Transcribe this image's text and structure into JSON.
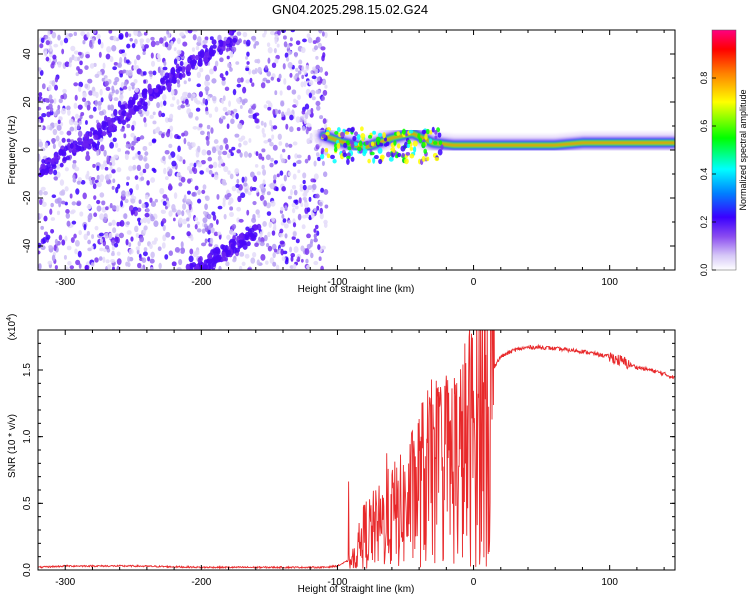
{
  "figure": {
    "title": "GN04.2025.298.15.02.G24"
  },
  "colors": {
    "axis": "#000000",
    "snr_line": "#e8292b",
    "spectro_background": "#ffffff",
    "colorbar_stops": [
      "#ffffff",
      "#b9a6f2",
      "#7a35f0",
      "#3a00ff",
      "#0080ff",
      "#00ffff",
      "#00ff00",
      "#ffff00",
      "#ff8000",
      "#ff0000",
      "#ff0080"
    ]
  },
  "chart_data": [
    {
      "type": "heatmap",
      "name": "spectrogram",
      "title": "GN04.2025.298.15.02.G24",
      "xlabel": "Height of straight line (km)",
      "ylabel": "Frequency (Hz)",
      "xlim": [
        -320,
        148
      ],
      "ylim": [
        -50,
        50
      ],
      "xticks": [
        -300,
        -200,
        -100,
        0,
        100
      ],
      "xtick_labels": [
        "-300",
        "-200",
        "-100",
        "0",
        "100"
      ],
      "yticks": [
        -40,
        -20,
        0,
        20,
        40
      ],
      "ytick_labels": [
        "-40",
        "-20",
        "0",
        "20",
        "40"
      ],
      "noise_region_xlim": [
        -320,
        -108
      ],
      "diagonal_track_1": [
        [
          -318,
          -8
        ],
        [
          -285,
          3
        ],
        [
          -250,
          18
        ],
        [
          -215,
          33
        ],
        [
          -175,
          48
        ]
      ],
      "diagonal_track_2": [
        [
          -210,
          -52
        ],
        [
          -160,
          -34
        ]
      ],
      "carrier_track": [
        [
          -110,
          6
        ],
        [
          -95,
          3
        ],
        [
          -80,
          1
        ],
        [
          -60,
          5
        ],
        [
          -45,
          7
        ],
        [
          -30,
          3
        ],
        [
          -15,
          2
        ],
        [
          0,
          2
        ],
        [
          20,
          2
        ],
        [
          40,
          2
        ],
        [
          60,
          2
        ],
        [
          80,
          3
        ],
        [
          100,
          3
        ],
        [
          120,
          3
        ],
        [
          148,
          3
        ]
      ],
      "colorbar": {
        "label": "Normalized spectral amplitude",
        "range": [
          0.0,
          1.0
        ],
        "ticks": [
          0.0,
          0.2,
          0.4,
          0.6,
          0.8
        ],
        "tick_labels": [
          "0.0",
          "0.2",
          "0.4",
          "0.6",
          "0.8"
        ]
      }
    },
    {
      "type": "line",
      "name": "snr",
      "xlabel": "Height of straight line (km)",
      "ylabel": "SNR (10 * v/v)",
      "scale_note_base": "(x10",
      "scale_note_exp": "4",
      "scale_note_close": ")",
      "xlim": [
        -320,
        148
      ],
      "ylim": [
        0,
        1.8
      ],
      "xticks": [
        -300,
        -200,
        -100,
        0,
        100
      ],
      "xtick_labels": [
        "-300",
        "-200",
        "-100",
        "0",
        "100"
      ],
      "yticks": [
        0,
        0.5,
        1.0,
        1.5
      ],
      "ytick_labels": [
        "0.0",
        "0.5",
        "1.0",
        "1.5"
      ],
      "series": [
        {
          "name": "SNR",
          "x": [
            -320,
            -300,
            -250,
            -200,
            -150,
            -110,
            -100,
            -90,
            -85,
            -80,
            -70,
            -60,
            -50,
            -40,
            -30,
            -20,
            -10,
            0,
            10,
            20,
            30,
            40,
            50,
            60,
            70,
            80,
            90,
            100,
            110,
            120,
            130,
            140,
            148
          ],
          "y": [
            0.02,
            0.03,
            0.03,
            0.02,
            0.02,
            0.02,
            0.03,
            0.08,
            0.15,
            0.3,
            0.35,
            0.45,
            0.5,
            0.7,
            0.8,
            0.85,
            0.9,
            1.1,
            1.45,
            1.6,
            1.65,
            1.67,
            1.67,
            1.66,
            1.65,
            1.64,
            1.62,
            1.6,
            1.56,
            1.52,
            1.5,
            1.47,
            1.44
          ]
        }
      ]
    }
  ]
}
